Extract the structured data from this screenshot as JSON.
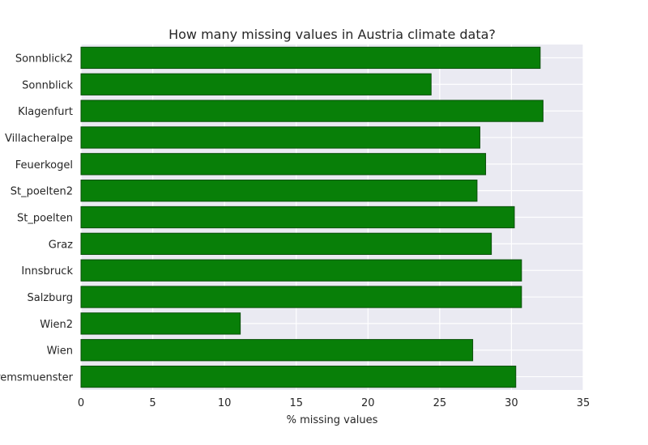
{
  "chart_data": {
    "type": "bar",
    "orientation": "horizontal",
    "title": "How many missing values in Austria climate data?",
    "xlabel": "% missing values",
    "ylabel": "",
    "xlim": [
      0,
      35
    ],
    "xticks": [
      0,
      5,
      10,
      15,
      20,
      25,
      30,
      35
    ],
    "grid": true,
    "categories": [
      "Sonnblick2",
      "Sonnblick",
      "Klagenfurt",
      "Villacheralpe",
      "Feuerkogel",
      "St_poelten2",
      "St_poelten",
      "Graz",
      "Innsbruck",
      "Salzburg",
      "Wien2",
      "Wien",
      "Kremsmuenster"
    ],
    "values": [
      32.0,
      24.4,
      32.2,
      27.8,
      28.2,
      27.6,
      30.2,
      28.6,
      30.7,
      30.7,
      11.1,
      27.3,
      30.3
    ],
    "colors": {
      "bar_fill": "#087f08",
      "bar_edge": "#0a4f0a",
      "plot_background": "#eaeaf2",
      "grid": "#ffffff"
    }
  }
}
